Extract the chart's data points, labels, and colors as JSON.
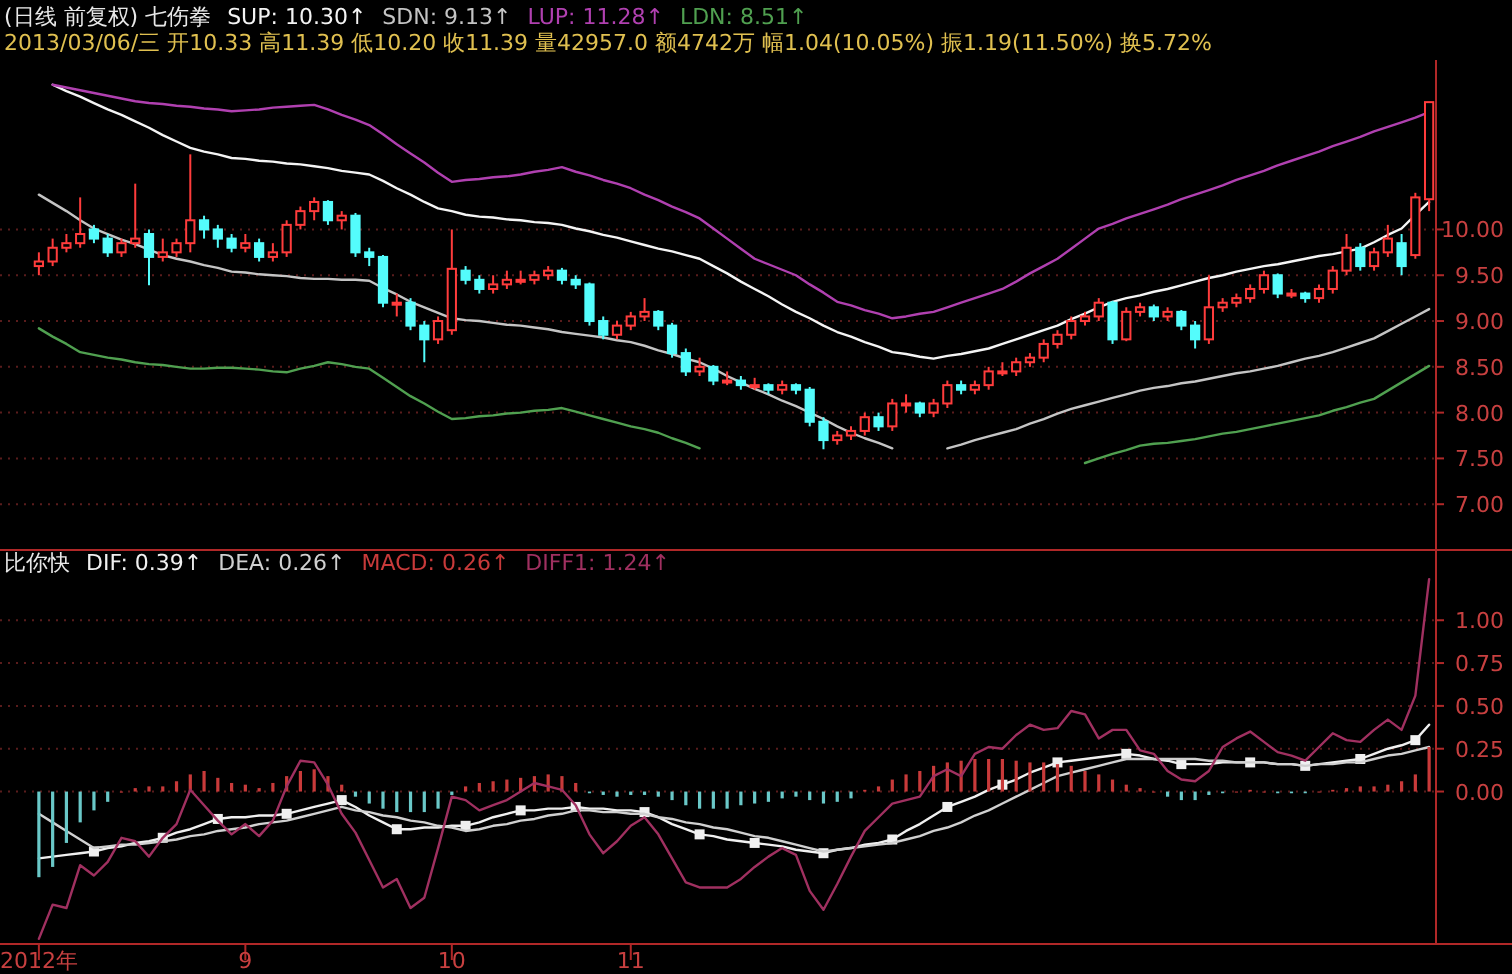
{
  "chart_data": [
    {
      "type": "candlestick",
      "title": "(日线 前复权) 七伤拳",
      "annotations": [
        "2013/03/06/三 开10.33 高11.39 低10.20 收11.39 量42957.0 额4742万 幅1.04(10.05%) 振1.19(11.50%) 换5.72%"
      ],
      "ohlc": [
        [
          9.6,
          9.75,
          9.5,
          9.65
        ],
        [
          9.65,
          9.9,
          9.6,
          9.8
        ],
        [
          9.8,
          9.95,
          9.75,
          9.85
        ],
        [
          9.85,
          10.35,
          9.8,
          9.95
        ],
        [
          10.0,
          10.05,
          9.85,
          9.9
        ],
        [
          9.9,
          9.95,
          9.7,
          9.75
        ],
        [
          9.75,
          9.9,
          9.7,
          9.85
        ],
        [
          9.85,
          10.5,
          9.8,
          9.9
        ],
        [
          9.95,
          10.0,
          9.39,
          9.7
        ],
        [
          9.7,
          9.9,
          9.65,
          9.75
        ],
        [
          9.75,
          9.9,
          9.7,
          9.85
        ],
        [
          9.85,
          10.82,
          9.75,
          10.1
        ],
        [
          10.1,
          10.15,
          9.9,
          10.0
        ],
        [
          10.0,
          10.05,
          9.8,
          9.9
        ],
        [
          9.9,
          9.95,
          9.75,
          9.8
        ],
        [
          9.8,
          9.95,
          9.75,
          9.85
        ],
        [
          9.85,
          9.9,
          9.65,
          9.7
        ],
        [
          9.7,
          9.85,
          9.65,
          9.75
        ],
        [
          9.75,
          10.1,
          9.7,
          10.05
        ],
        [
          10.05,
          10.25,
          10.0,
          10.2
        ],
        [
          10.2,
          10.35,
          10.1,
          10.3
        ],
        [
          10.3,
          10.32,
          10.05,
          10.1
        ],
        [
          10.1,
          10.2,
          10.0,
          10.15
        ],
        [
          10.15,
          10.18,
          9.7,
          9.75
        ],
        [
          9.75,
          9.8,
          9.6,
          9.7
        ],
        [
          9.7,
          9.72,
          9.15,
          9.2
        ],
        [
          9.2,
          9.3,
          9.05,
          9.2
        ],
        [
          9.2,
          9.25,
          8.9,
          8.95
        ],
        [
          8.95,
          9.0,
          8.55,
          8.8
        ],
        [
          8.8,
          9.05,
          8.75,
          9.0
        ],
        [
          8.9,
          10.0,
          8.85,
          9.57
        ],
        [
          9.55,
          9.6,
          9.4,
          9.45
        ],
        [
          9.45,
          9.5,
          9.3,
          9.35
        ],
        [
          9.35,
          9.5,
          9.3,
          9.4
        ],
        [
          9.4,
          9.55,
          9.35,
          9.45
        ],
        [
          9.45,
          9.55,
          9.4,
          9.45
        ],
        [
          9.45,
          9.55,
          9.4,
          9.5
        ],
        [
          9.5,
          9.6,
          9.45,
          9.55
        ],
        [
          9.55,
          9.58,
          9.4,
          9.45
        ],
        [
          9.45,
          9.5,
          9.35,
          9.4
        ],
        [
          9.4,
          9.42,
          8.95,
          9.0
        ],
        [
          9.0,
          9.05,
          8.8,
          8.85
        ],
        [
          8.85,
          9.0,
          8.8,
          8.95
        ],
        [
          8.95,
          9.1,
          8.9,
          9.05
        ],
        [
          9.05,
          9.25,
          9.0,
          9.1
        ],
        [
          9.1,
          9.12,
          8.9,
          8.95
        ],
        [
          8.95,
          8.98,
          8.6,
          8.65
        ],
        [
          8.65,
          8.7,
          8.4,
          8.45
        ],
        [
          8.45,
          8.6,
          8.4,
          8.5
        ],
        [
          8.5,
          8.52,
          8.3,
          8.35
        ],
        [
          8.35,
          8.45,
          8.3,
          8.35
        ],
        [
          8.35,
          8.4,
          8.25,
          8.3
        ],
        [
          8.3,
          8.38,
          8.25,
          8.3
        ],
        [
          8.3,
          8.32,
          8.2,
          8.25
        ],
        [
          8.25,
          8.35,
          8.2,
          8.3
        ],
        [
          8.3,
          8.32,
          8.2,
          8.25
        ],
        [
          8.25,
          8.28,
          7.85,
          7.9
        ],
        [
          7.9,
          7.95,
          7.6,
          7.7
        ],
        [
          7.7,
          7.8,
          7.65,
          7.75
        ],
        [
          7.75,
          7.85,
          7.7,
          7.8
        ],
        [
          7.8,
          8.0,
          7.75,
          7.95
        ],
        [
          7.95,
          8.0,
          7.8,
          7.85
        ],
        [
          7.85,
          8.15,
          7.8,
          8.1
        ],
        [
          8.1,
          8.2,
          8.0,
          8.1
        ],
        [
          8.1,
          8.12,
          7.95,
          8.0
        ],
        [
          8.0,
          8.15,
          7.95,
          8.1
        ],
        [
          8.1,
          8.35,
          8.05,
          8.3
        ],
        [
          8.3,
          8.35,
          8.2,
          8.25
        ],
        [
          8.25,
          8.35,
          8.2,
          8.3
        ],
        [
          8.3,
          8.5,
          8.25,
          8.45
        ],
        [
          8.45,
          8.55,
          8.4,
          8.45
        ],
        [
          8.45,
          8.6,
          8.4,
          8.55
        ],
        [
          8.55,
          8.65,
          8.5,
          8.6
        ],
        [
          8.6,
          8.8,
          8.55,
          8.75
        ],
        [
          8.75,
          8.9,
          8.7,
          8.85
        ],
        [
          8.85,
          9.05,
          8.8,
          9.0
        ],
        [
          9.0,
          9.1,
          8.95,
          9.05
        ],
        [
          9.05,
          9.25,
          9.0,
          9.2
        ],
        [
          9.2,
          9.22,
          8.75,
          8.8
        ],
        [
          8.8,
          9.15,
          8.78,
          9.1
        ],
        [
          9.1,
          9.2,
          9.05,
          9.15
        ],
        [
          9.15,
          9.18,
          9.0,
          9.05
        ],
        [
          9.05,
          9.15,
          9.0,
          9.1
        ],
        [
          9.1,
          9.12,
          8.9,
          8.95
        ],
        [
          8.95,
          9.0,
          8.7,
          8.8
        ],
        [
          8.8,
          9.5,
          8.75,
          9.15
        ],
        [
          9.15,
          9.25,
          9.1,
          9.2
        ],
        [
          9.2,
          9.3,
          9.15,
          9.25
        ],
        [
          9.25,
          9.4,
          9.2,
          9.35
        ],
        [
          9.35,
          9.55,
          9.3,
          9.5
        ],
        [
          9.5,
          9.52,
          9.25,
          9.3
        ],
        [
          9.3,
          9.35,
          9.25,
          9.3
        ],
        [
          9.3,
          9.32,
          9.2,
          9.25
        ],
        [
          9.25,
          9.4,
          9.2,
          9.35
        ],
        [
          9.35,
          9.6,
          9.3,
          9.55
        ],
        [
          9.55,
          9.95,
          9.5,
          9.8
        ],
        [
          9.8,
          9.85,
          9.55,
          9.6
        ],
        [
          9.6,
          9.8,
          9.55,
          9.75
        ],
        [
          9.75,
          10.05,
          9.7,
          9.9
        ],
        [
          9.85,
          9.95,
          9.5,
          9.6
        ],
        [
          9.72,
          10.4,
          9.68,
          10.35
        ],
        [
          10.33,
          11.39,
          10.2,
          11.39
        ]
      ],
      "series": [
        {
          "name": "SUP: 10.30↑",
          "type": "line",
          "color": "#f4f4f4",
          "values": [
            null,
            11.58,
            11.51,
            11.45,
            11.38,
            11.31,
            11.25,
            11.18,
            11.11,
            11.03,
            10.96,
            10.89,
            10.85,
            10.82,
            10.78,
            10.77,
            10.75,
            10.74,
            10.72,
            10.71,
            10.69,
            10.67,
            10.64,
            10.62,
            10.6,
            10.53,
            10.45,
            10.38,
            10.3,
            10.23,
            10.2,
            10.16,
            10.14,
            10.13,
            10.11,
            10.1,
            10.08,
            10.07,
            10.05,
            10.01,
            9.98,
            9.94,
            9.91,
            9.87,
            9.83,
            9.79,
            9.76,
            9.72,
            9.68,
            9.6,
            9.52,
            9.43,
            9.35,
            9.27,
            9.18,
            9.1,
            9.03,
            8.95,
            8.88,
            8.83,
            8.77,
            8.72,
            8.66,
            8.64,
            8.61,
            8.59,
            8.62,
            8.64,
            8.67,
            8.7,
            8.75,
            8.8,
            8.85,
            8.9,
            8.95,
            9.02,
            9.08,
            9.15,
            9.21,
            9.25,
            9.28,
            9.32,
            9.35,
            9.39,
            9.43,
            9.47,
            9.5,
            9.54,
            9.57,
            9.6,
            9.62,
            9.65,
            9.68,
            9.71,
            9.73,
            9.76,
            9.79,
            9.86,
            9.94,
            10.01,
            10.16,
            10.3
          ]
        },
        {
          "name": "SDN: 9.13↑",
          "type": "line",
          "color": "#c4c4c4",
          "values": [
            10.38,
            10.29,
            10.2,
            10.1,
            10.01,
            9.95,
            9.89,
            9.84,
            9.78,
            9.72,
            9.68,
            9.65,
            9.61,
            9.58,
            9.54,
            9.53,
            9.51,
            9.5,
            9.49,
            9.47,
            9.46,
            9.46,
            9.45,
            9.45,
            9.44,
            9.36,
            9.29,
            9.21,
            9.15,
            9.09,
            9.03,
            9.01,
            9.0,
            8.98,
            8.96,
            8.95,
            8.93,
            8.91,
            8.88,
            8.86,
            8.84,
            8.82,
            8.79,
            8.77,
            8.73,
            8.68,
            8.64,
            8.59,
            8.55,
            8.48,
            8.4,
            8.33,
            8.26,
            8.2,
            8.13,
            8.07,
            8.0,
            7.93,
            7.85,
            7.78,
            7.72,
            7.67,
            7.61,
            null,
            null,
            null,
            7.61,
            7.65,
            7.7,
            7.74,
            7.78,
            7.82,
            7.88,
            7.93,
            7.99,
            8.04,
            8.08,
            8.12,
            8.16,
            8.2,
            8.24,
            8.27,
            8.29,
            8.32,
            8.34,
            8.37,
            8.4,
            8.43,
            8.45,
            8.48,
            8.51,
            8.55,
            8.59,
            8.62,
            8.66,
            8.71,
            8.76,
            8.81,
            8.89,
            8.97,
            9.05,
            9.13
          ]
        },
        {
          "name": "LUP: 11.28↑",
          "type": "line",
          "color": "#b040b0",
          "values": [
            null,
            11.58,
            11.55,
            11.52,
            11.49,
            11.46,
            11.43,
            11.4,
            11.38,
            11.37,
            11.35,
            11.34,
            11.32,
            11.31,
            11.29,
            11.3,
            11.31,
            11.33,
            11.34,
            11.35,
            11.36,
            11.31,
            11.25,
            11.2,
            11.14,
            11.04,
            10.93,
            10.83,
            10.73,
            10.62,
            10.52,
            10.54,
            10.55,
            10.57,
            10.58,
            10.6,
            10.63,
            10.65,
            10.68,
            10.63,
            10.59,
            10.54,
            10.5,
            10.45,
            10.38,
            10.32,
            10.25,
            10.19,
            10.12,
            10.01,
            9.9,
            9.79,
            9.68,
            9.62,
            9.56,
            9.5,
            9.4,
            9.31,
            9.21,
            9.17,
            9.12,
            9.08,
            9.03,
            9.05,
            9.08,
            9.1,
            9.15,
            9.2,
            9.25,
            9.3,
            9.35,
            9.43,
            9.52,
            9.6,
            9.68,
            9.79,
            9.9,
            10.01,
            10.06,
            10.12,
            10.17,
            10.22,
            10.27,
            10.33,
            10.38,
            10.43,
            10.48,
            10.54,
            10.59,
            10.64,
            10.7,
            10.75,
            10.8,
            10.85,
            10.91,
            10.96,
            11.01,
            11.07,
            11.12,
            11.17,
            11.22,
            11.28
          ]
        },
        {
          "name": "LDN: 8.51↑",
          "type": "line",
          "color": "#50a050",
          "values": [
            8.92,
            8.83,
            8.75,
            8.66,
            8.63,
            8.6,
            8.58,
            8.55,
            8.53,
            8.52,
            8.5,
            8.48,
            8.48,
            8.49,
            8.49,
            8.48,
            8.47,
            8.45,
            8.44,
            8.48,
            8.51,
            8.55,
            8.53,
            8.5,
            8.48,
            8.38,
            8.28,
            8.18,
            8.1,
            8.01,
            7.93,
            7.94,
            7.96,
            7.97,
            7.99,
            8.0,
            8.02,
            8.03,
            8.05,
            8.01,
            7.97,
            7.93,
            7.89,
            7.85,
            7.82,
            7.78,
            7.72,
            7.67,
            7.61,
            null,
            null,
            null,
            null,
            null,
            null,
            null,
            null,
            null,
            null,
            null,
            null,
            null,
            null,
            null,
            null,
            null,
            null,
            null,
            null,
            null,
            null,
            null,
            null,
            null,
            null,
            null,
            7.45,
            7.5,
            7.55,
            7.59,
            7.64,
            7.66,
            7.67,
            7.69,
            7.71,
            7.74,
            7.77,
            7.79,
            7.82,
            7.85,
            7.88,
            7.91,
            7.94,
            7.97,
            8.02,
            8.06,
            8.11,
            8.15,
            8.24,
            8.33,
            8.42,
            8.51
          ]
        }
      ],
      "ylim": [
        6.5,
        11.85
      ],
      "yticks": [
        {
          "value": 7,
          "label": "7.00"
        },
        {
          "value": 7.5,
          "label": "7.50"
        },
        {
          "value": 8,
          "label": "8.00"
        },
        {
          "value": 8.5,
          "label": "8.50"
        },
        {
          "value": 9,
          "label": "9.00"
        },
        {
          "value": 9.5,
          "label": "9.50"
        },
        {
          "value": 10,
          "label": "10.00"
        }
      ],
      "grid": "y",
      "legend": "top left",
      "tick_labels": "y"
    },
    {
      "type": "line",
      "title": "比你快",
      "categories": [
        "2012年",
        null,
        null,
        null,
        null,
        null,
        null,
        null,
        null,
        null,
        null,
        null,
        null,
        null,
        null,
        "9",
        null,
        null,
        null,
        null,
        null,
        null,
        null,
        null,
        null,
        null,
        null,
        null,
        null,
        null,
        "10",
        null,
        null,
        null,
        null,
        null,
        null,
        null,
        null,
        null,
        null,
        null,
        null,
        "11",
        null,
        null,
        null,
        null,
        null,
        null,
        null,
        null,
        null,
        null,
        null,
        null,
        null,
        null,
        null,
        null,
        null,
        null,
        null,
        null,
        null,
        null,
        null,
        null,
        null,
        null,
        null,
        null,
        null,
        null,
        null,
        null,
        null,
        null,
        null,
        null,
        null,
        null,
        null,
        null,
        null,
        null,
        null,
        null,
        null,
        null,
        null,
        null,
        null,
        null,
        null,
        null,
        null,
        null,
        null,
        null,
        null,
        null
      ],
      "series": [
        {
          "name": "DIF: 0.39↑",
          "type": "line",
          "color": "#f0f0f0",
          "values": [
            -0.39,
            -0.38,
            -0.37,
            -0.36,
            -0.35,
            -0.33,
            -0.32,
            -0.3,
            -0.29,
            -0.27,
            -0.24,
            -0.22,
            -0.19,
            -0.16,
            -0.15,
            -0.15,
            -0.14,
            -0.14,
            -0.13,
            -0.11,
            -0.09,
            -0.07,
            -0.05,
            -0.09,
            -0.14,
            -0.18,
            -0.22,
            -0.22,
            -0.21,
            -0.21,
            -0.2,
            -0.2,
            -0.18,
            -0.15,
            -0.13,
            -0.11,
            -0.11,
            -0.1,
            -0.1,
            -0.09,
            -0.1,
            -0.1,
            -0.11,
            -0.11,
            -0.12,
            -0.15,
            -0.19,
            -0.22,
            -0.25,
            -0.26,
            -0.28,
            -0.29,
            -0.3,
            -0.31,
            -0.32,
            -0.34,
            -0.35,
            -0.36,
            -0.34,
            -0.33,
            -0.31,
            -0.3,
            -0.28,
            -0.23,
            -0.19,
            -0.14,
            -0.09,
            -0.06,
            -0.03,
            0.01,
            0.04,
            0.07,
            0.11,
            0.14,
            0.17,
            0.18,
            0.19,
            0.2,
            0.21,
            0.22,
            0.21,
            0.19,
            0.18,
            0.16,
            0.16,
            0.16,
            0.17,
            0.17,
            0.17,
            0.17,
            0.16,
            0.16,
            0.15,
            0.16,
            0.17,
            0.18,
            0.19,
            0.22,
            0.25,
            0.27,
            0.3,
            0.39
          ]
        },
        {
          "type": "scatter",
          "color": "#f0f0f0",
          "marker": "square",
          "values": [
            null,
            null,
            null,
            null,
            -0.35,
            null,
            null,
            null,
            null,
            -0.27,
            null,
            null,
            null,
            -0.16,
            null,
            null,
            null,
            null,
            -0.13,
            null,
            null,
            null,
            -0.05,
            null,
            null,
            null,
            -0.22,
            null,
            null,
            null,
            null,
            -0.2,
            null,
            null,
            null,
            -0.11,
            null,
            null,
            null,
            -0.09,
            null,
            null,
            null,
            null,
            -0.12,
            null,
            null,
            null,
            -0.25,
            null,
            null,
            null,
            -0.3,
            null,
            null,
            null,
            null,
            -0.36,
            null,
            null,
            null,
            null,
            -0.28,
            null,
            null,
            null,
            -0.09,
            null,
            null,
            null,
            0.04,
            null,
            null,
            null,
            0.17,
            null,
            null,
            null,
            null,
            0.22,
            null,
            null,
            null,
            0.16,
            null,
            null,
            null,
            null,
            0.17,
            null,
            null,
            null,
            0.15,
            null,
            null,
            null,
            0.19,
            null,
            null,
            null,
            0.3,
            null
          ]
        },
        {
          "name": "DEA: 0.26↑",
          "type": "line",
          "color": "#d0d0d0",
          "values": [
            -0.13,
            -0.18,
            -0.23,
            -0.28,
            -0.33,
            -0.32,
            -0.31,
            -0.31,
            -0.3,
            -0.29,
            -0.28,
            -0.26,
            -0.25,
            -0.23,
            -0.22,
            -0.21,
            -0.19,
            -0.18,
            -0.17,
            -0.15,
            -0.13,
            -0.11,
            -0.09,
            -0.11,
            -0.12,
            -0.14,
            -0.15,
            -0.17,
            -0.18,
            -0.2,
            -0.21,
            -0.23,
            -0.22,
            -0.2,
            -0.19,
            -0.17,
            -0.16,
            -0.14,
            -0.13,
            -0.11,
            -0.11,
            -0.12,
            -0.12,
            -0.13,
            -0.13,
            -0.15,
            -0.16,
            -0.18,
            -0.19,
            -0.21,
            -0.22,
            -0.24,
            -0.26,
            -0.27,
            -0.29,
            -0.31,
            -0.33,
            -0.35,
            -0.34,
            -0.33,
            -0.32,
            -0.31,
            -0.3,
            -0.28,
            -0.26,
            -0.23,
            -0.21,
            -0.18,
            -0.14,
            -0.11,
            -0.07,
            -0.03,
            0.01,
            0.05,
            0.09,
            0.11,
            0.13,
            0.15,
            0.17,
            0.19,
            0.19,
            0.19,
            0.19,
            0.19,
            0.19,
            0.18,
            0.18,
            0.17,
            0.17,
            0.17,
            0.16,
            0.16,
            0.15,
            0.16,
            0.16,
            0.17,
            0.17,
            0.19,
            0.21,
            0.22,
            0.24,
            0.26
          ]
        },
        {
          "name": "MACD: 0.26↑",
          "type": "bar",
          "color": "#c83a3a",
          "colors": [
            "#6ac8c8",
            "#6ac8c8",
            "#6ac8c8",
            "#6ac8c8",
            "#6ac8c8",
            "#6ac8c8",
            "#c83a3a",
            "#c83a3a",
            "#c83a3a",
            "#c83a3a",
            "#c83a3a",
            "#c83a3a",
            "#c83a3a",
            "#c83a3a",
            "#c83a3a",
            "#c83a3a",
            "#c83a3a",
            "#c83a3a",
            "#c83a3a",
            "#c83a3a",
            "#c83a3a",
            "#c83a3a",
            "#c83a3a",
            "#6ac8c8",
            "#6ac8c8",
            "#6ac8c8",
            "#6ac8c8",
            "#6ac8c8",
            "#6ac8c8",
            "#6ac8c8",
            "#6ac8c8",
            "#c83a3a",
            "#c83a3a",
            "#c83a3a",
            "#c83a3a",
            "#c83a3a",
            "#c83a3a",
            "#c83a3a",
            "#c83a3a",
            "#c83a3a",
            "#6ac8c8",
            "#6ac8c8",
            "#6ac8c8",
            "#6ac8c8",
            "#6ac8c8",
            "#6ac8c8",
            "#6ac8c8",
            "#6ac8c8",
            "#6ac8c8",
            "#6ac8c8",
            "#6ac8c8",
            "#6ac8c8",
            "#6ac8c8",
            "#6ac8c8",
            "#6ac8c8",
            "#6ac8c8",
            "#6ac8c8",
            "#6ac8c8",
            "#6ac8c8",
            "#6ac8c8",
            "#c83a3a",
            "#c83a3a",
            "#c83a3a",
            "#c83a3a",
            "#c83a3a",
            "#c83a3a",
            "#c83a3a",
            "#c83a3a",
            "#c83a3a",
            "#c83a3a",
            "#c83a3a",
            "#c83a3a",
            "#c83a3a",
            "#c83a3a",
            "#c83a3a",
            "#c83a3a",
            "#c83a3a",
            "#c83a3a",
            "#c83a3a",
            "#c83a3a",
            "#c83a3a",
            "#c83a3a",
            "#6ac8c8",
            "#6ac8c8",
            "#6ac8c8",
            "#6ac8c8",
            "#6ac8c8",
            "#c83a3a",
            "#c83a3a",
            "#c83a3a",
            "#6ac8c8",
            "#6ac8c8",
            "#6ac8c8",
            "#c83a3a",
            "#c83a3a",
            "#c83a3a",
            "#c83a3a",
            "#c83a3a",
            "#c83a3a",
            "#c83a3a",
            "#c83a3a",
            "#c83a3a"
          ],
          "values": [
            -0.5,
            -0.44,
            -0.3,
            -0.18,
            -0.11,
            -0.06,
            0.0,
            0.02,
            0.03,
            0.03,
            0.06,
            0.1,
            0.12,
            0.08,
            0.05,
            0.04,
            0.02,
            0.05,
            0.09,
            0.12,
            0.13,
            0.09,
            0.04,
            -0.03,
            -0.07,
            -0.1,
            -0.12,
            -0.12,
            -0.12,
            -0.1,
            -0.02,
            0.03,
            0.05,
            0.06,
            0.07,
            0.08,
            0.09,
            0.1,
            0.09,
            0.05,
            -0.01,
            -0.02,
            -0.03,
            -0.02,
            -0.02,
            -0.03,
            -0.05,
            -0.08,
            -0.1,
            -0.1,
            -0.1,
            -0.08,
            -0.07,
            -0.06,
            -0.04,
            -0.03,
            -0.05,
            -0.07,
            -0.06,
            -0.04,
            0.01,
            0.03,
            0.07,
            0.1,
            0.12,
            0.15,
            0.17,
            0.18,
            0.19,
            0.19,
            0.19,
            0.18,
            0.17,
            0.17,
            0.16,
            0.15,
            0.12,
            0.1,
            0.07,
            0.04,
            0.02,
            0.0,
            -0.03,
            -0.05,
            -0.05,
            -0.02,
            -0.01,
            0.0,
            0.01,
            0.0,
            -0.01,
            -0.01,
            -0.01,
            0.0,
            0.01,
            0.02,
            0.03,
            0.03,
            0.04,
            0.06,
            0.1,
            0.26
          ]
        },
        {
          "name": "DIFF1: 1.24↑",
          "type": "line",
          "color": "#a03060",
          "values": [
            -0.86,
            -0.66,
            -0.68,
            -0.43,
            -0.49,
            -0.41,
            -0.27,
            -0.29,
            -0.38,
            -0.27,
            -0.19,
            0.01,
            -0.08,
            -0.17,
            -0.25,
            -0.19,
            -0.26,
            -0.17,
            0.03,
            0.18,
            0.17,
            0.04,
            -0.13,
            -0.24,
            -0.4,
            -0.56,
            -0.51,
            -0.68,
            -0.62,
            -0.33,
            -0.03,
            -0.05,
            -0.11,
            -0.08,
            -0.05,
            0.0,
            0.05,
            0.03,
            0.01,
            -0.08,
            -0.25,
            -0.36,
            -0.29,
            -0.2,
            -0.15,
            -0.25,
            -0.39,
            -0.53,
            -0.56,
            -0.56,
            -0.56,
            -0.51,
            -0.44,
            -0.38,
            -0.33,
            -0.37,
            -0.58,
            -0.69,
            -0.54,
            -0.38,
            -0.23,
            -0.15,
            -0.07,
            -0.05,
            -0.03,
            0.09,
            0.13,
            0.09,
            0.22,
            0.26,
            0.25,
            0.33,
            0.39,
            0.36,
            0.37,
            0.47,
            0.45,
            0.31,
            0.36,
            0.36,
            0.24,
            0.22,
            0.12,
            0.07,
            0.06,
            0.12,
            0.26,
            0.31,
            0.35,
            0.29,
            0.23,
            0.21,
            0.18,
            0.26,
            0.34,
            0.3,
            0.29,
            0.36,
            0.42,
            0.36,
            0.56,
            1.24
          ]
        }
      ],
      "ylim": [
        -0.89,
        1.41
      ],
      "yticks": [
        {
          "value": 0,
          "label": "0.00"
        },
        {
          "value": 0.25,
          "label": "0.25"
        },
        {
          "value": 0.5,
          "label": "0.50"
        },
        {
          "value": 0.75,
          "label": "0.75"
        },
        {
          "value": 1,
          "label": "1.00"
        }
      ],
      "grid": "y",
      "legend": "top left"
    }
  ]
}
